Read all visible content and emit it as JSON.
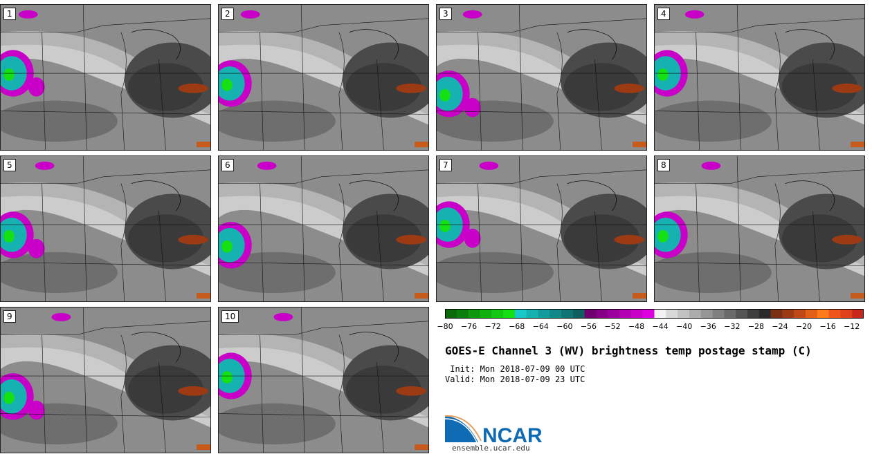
{
  "panels": [
    {
      "label": "1"
    },
    {
      "label": "2"
    },
    {
      "label": "3"
    },
    {
      "label": "4"
    },
    {
      "label": "5"
    },
    {
      "label": "6"
    },
    {
      "label": "7"
    },
    {
      "label": "8"
    },
    {
      "label": "9"
    },
    {
      "label": "10"
    }
  ],
  "chart_data": {
    "type": "heatmap",
    "title": "GOES-E Channel 3 (WV) brightness temp postage stamp (C)",
    "colorbar": {
      "range": [
        -80,
        -10
      ],
      "ticks": [
        -80,
        -76,
        -72,
        -68,
        -64,
        -60,
        -56,
        -52,
        -48,
        -44,
        -40,
        -36,
        -32,
        -28,
        -24,
        -20,
        -16,
        -12
      ],
      "colors": [
        "#0a6a0a",
        "#0c7e0c",
        "#0e960e",
        "#10b010",
        "#12c812",
        "#14e014",
        "#18c8c8",
        "#16b2b2",
        "#149c9c",
        "#128888",
        "#107474",
        "#0e6060",
        "#700070",
        "#860086",
        "#9c009c",
        "#b200b2",
        "#c800c8",
        "#de00de",
        "#f2f2f2",
        "#d8d8d8",
        "#c2c2c2",
        "#acacac",
        "#969696",
        "#808080",
        "#6a6a6a",
        "#545454",
        "#3e3e3e",
        "#2a2a2a",
        "#7a2e12",
        "#9c3a14",
        "#be4816",
        "#e06018",
        "#ff7a1a",
        "#f0541a",
        "#e0401a",
        "#c8281a"
      ]
    }
  },
  "info": {
    "init": " Init: Mon 2018-07-09 00 UTC",
    "valid": "Valid: Mon 2018-07-09 23 UTC"
  },
  "logo": {
    "text": "NCAR",
    "site": "ensemble.ucar.edu",
    "color": "#0f6bb3"
  }
}
